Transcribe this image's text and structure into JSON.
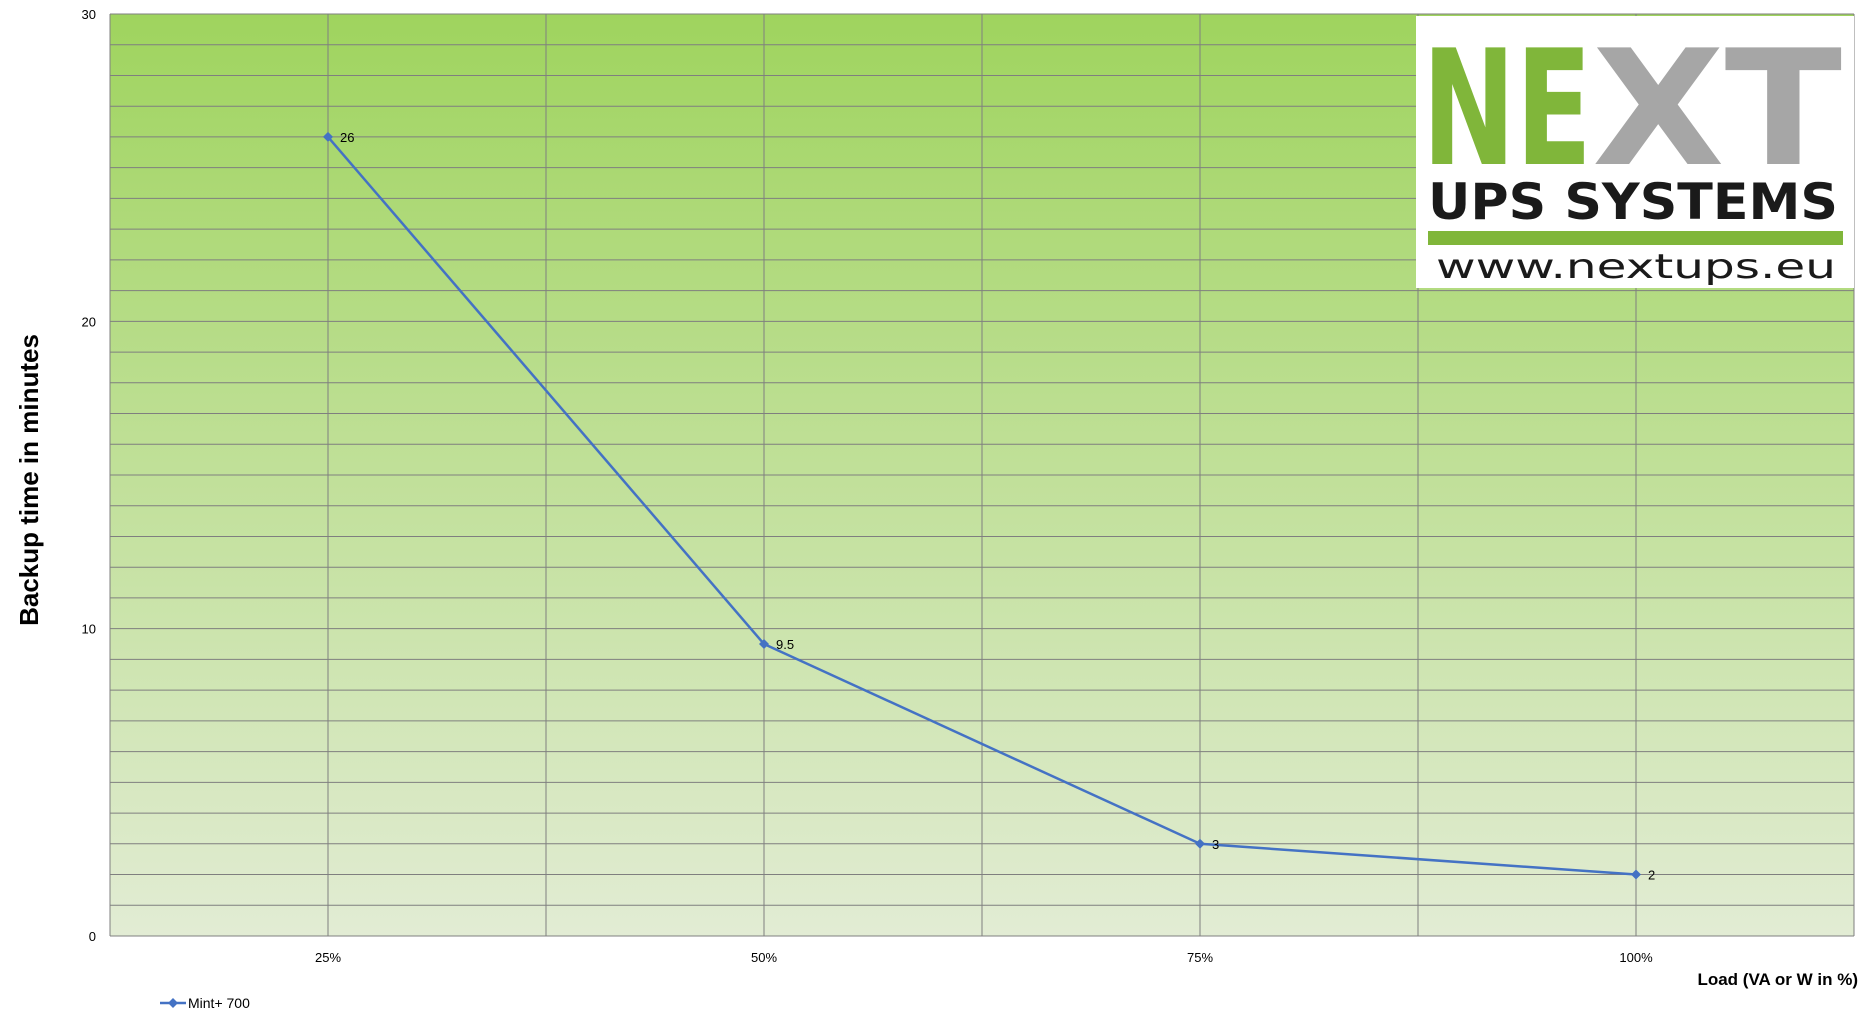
{
  "chart_data": {
    "type": "line",
    "categories": [
      "25%",
      "50%",
      "75%",
      "100%"
    ],
    "series": [
      {
        "name": "Mint+ 700",
        "values": [
          26,
          9.5,
          3,
          2
        ],
        "color": "#4472C4"
      }
    ],
    "data_labels": [
      "26",
      "9.5",
      "3",
      "2"
    ],
    "ylabel": "Backup time in minutes",
    "xlabel": "Load (VA or W in %)",
    "ylim": [
      0,
      30
    ],
    "y_ticks": [
      "0",
      "10",
      "20",
      "30"
    ],
    "grid": true,
    "legend_position": "bottom-left",
    "background_gradient": [
      "#9fd45e",
      "#e2ecd4"
    ]
  },
  "logo": {
    "letters_green": "NE",
    "letters_gray": "XT",
    "line1": "UPS SYSTEMS",
    "line2": "www.nextups.eu",
    "green": "#80b63a",
    "gray": "#a6a6a6"
  }
}
